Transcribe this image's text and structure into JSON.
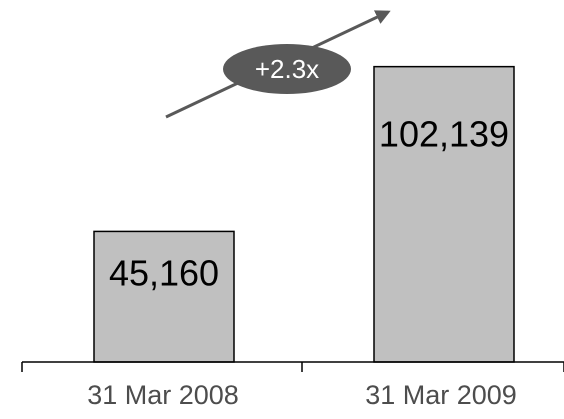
{
  "chart_data": {
    "type": "bar",
    "categories": [
      "31 Mar 2008",
      "31 Mar 2009"
    ],
    "values": [
      45160,
      102139
    ],
    "data_labels": [
      "45,160",
      "102,139"
    ],
    "annotation": "+2.3x",
    "ylim": [
      0,
      120000
    ],
    "grid": false,
    "legend": "none",
    "colors": {
      "bar_fill": "#c0c0c0",
      "bar_stroke": "#000000",
      "axis": "#000000",
      "arrow": "#595959",
      "badge_fill": "#595959",
      "badge_text": "#ffffff",
      "tick_label": "#4d4d4d",
      "data_label": "#000000"
    }
  }
}
